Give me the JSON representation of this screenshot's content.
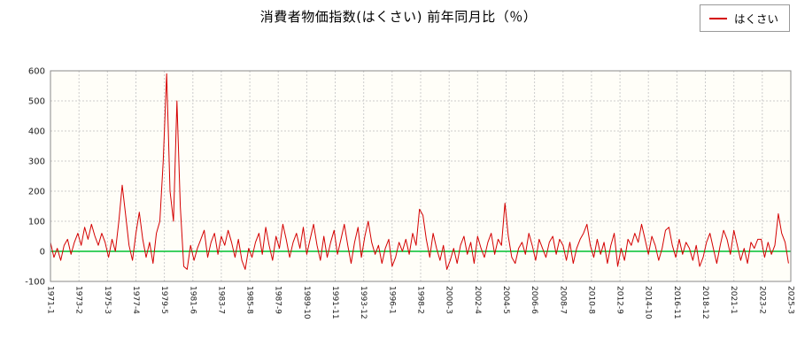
{
  "page": {
    "title": "消費者物価指数(はくさい) 前年同月比（％）",
    "legend": {
      "label": "はくさい",
      "line_color": "#d40000"
    }
  },
  "chart_data": {
    "type": "line",
    "title": "消費者物価指数(はくさい) 前年同月比（％）",
    "xlabel": "",
    "ylabel": "",
    "ylim": [
      -100,
      600
    ],
    "y_tick_step": 100,
    "y_tick_labels": [
      "600",
      "500",
      "400",
      "300",
      "200",
      "100",
      "0",
      "-100"
    ],
    "x_range_months": [
      0,
      650
    ],
    "x_tick_month_step": 25,
    "x_tick_labels": [
      "1971-1",
      "1973-2",
      "1975-3",
      "1977-4",
      "1979-5",
      "1981-6",
      "1983-7",
      "1985-8",
      "1987-9",
      "1989-10",
      "1991-11",
      "1993-12",
      "1996-1",
      "1998-2",
      "2000-3",
      "2002-4",
      "2004-5",
      "2006-6",
      "2008-7",
      "2010-8",
      "2012-9",
      "2014-10",
      "2016-11",
      "2018-12",
      "2021-1",
      "2023-2",
      "2025-3"
    ],
    "grid": true,
    "grid_color": "#cccccc",
    "zero_line_color": "#00c030",
    "legend_position": "top-right",
    "sampling_note": "quarterly approximation of monthly series, starting 1971-1",
    "series": [
      {
        "name": "はくさい",
        "color": "#d40000",
        "x_start_month": 0,
        "x_step_months": 3,
        "values": [
          30,
          -20,
          10,
          -30,
          20,
          40,
          -10,
          30,
          60,
          20,
          80,
          40,
          90,
          50,
          20,
          60,
          30,
          -20,
          40,
          0,
          100,
          220,
          120,
          20,
          -30,
          60,
          130,
          40,
          -20,
          30,
          -40,
          60,
          100,
          300,
          590,
          200,
          100,
          500,
          150,
          -50,
          -60,
          20,
          -30,
          10,
          40,
          70,
          -20,
          30,
          60,
          -10,
          50,
          20,
          70,
          30,
          -20,
          40,
          -30,
          -60,
          10,
          -20,
          30,
          60,
          -10,
          80,
          20,
          -30,
          50,
          10,
          90,
          40,
          -20,
          30,
          60,
          10,
          80,
          -10,
          40,
          90,
          20,
          -30,
          50,
          -20,
          30,
          70,
          -10,
          40,
          90,
          20,
          -40,
          30,
          80,
          -20,
          50,
          100,
          30,
          -10,
          20,
          -40,
          10,
          40,
          -50,
          -20,
          30,
          0,
          40,
          -10,
          60,
          20,
          140,
          120,
          40,
          -20,
          60,
          10,
          -30,
          20,
          -60,
          -30,
          10,
          -40,
          20,
          50,
          -10,
          30,
          -40,
          50,
          10,
          -20,
          30,
          60,
          -10,
          40,
          20,
          160,
          50,
          -20,
          -40,
          10,
          30,
          -10,
          60,
          20,
          -30,
          40,
          10,
          -20,
          30,
          50,
          -10,
          40,
          20,
          -30,
          30,
          -40,
          10,
          40,
          60,
          90,
          20,
          -20,
          40,
          -10,
          30,
          -40,
          20,
          60,
          -50,
          10,
          -30,
          40,
          20,
          60,
          30,
          90,
          40,
          -10,
          50,
          20,
          -30,
          10,
          70,
          80,
          20,
          -20,
          40,
          -10,
          30,
          10,
          -30,
          20,
          -50,
          -20,
          30,
          60,
          10,
          -40,
          20,
          70,
          40,
          -10,
          70,
          20,
          -30,
          10,
          -40,
          30,
          10,
          40,
          40,
          -20,
          30,
          -10,
          20,
          125,
          60,
          30,
          -40
        ]
      }
    ]
  }
}
